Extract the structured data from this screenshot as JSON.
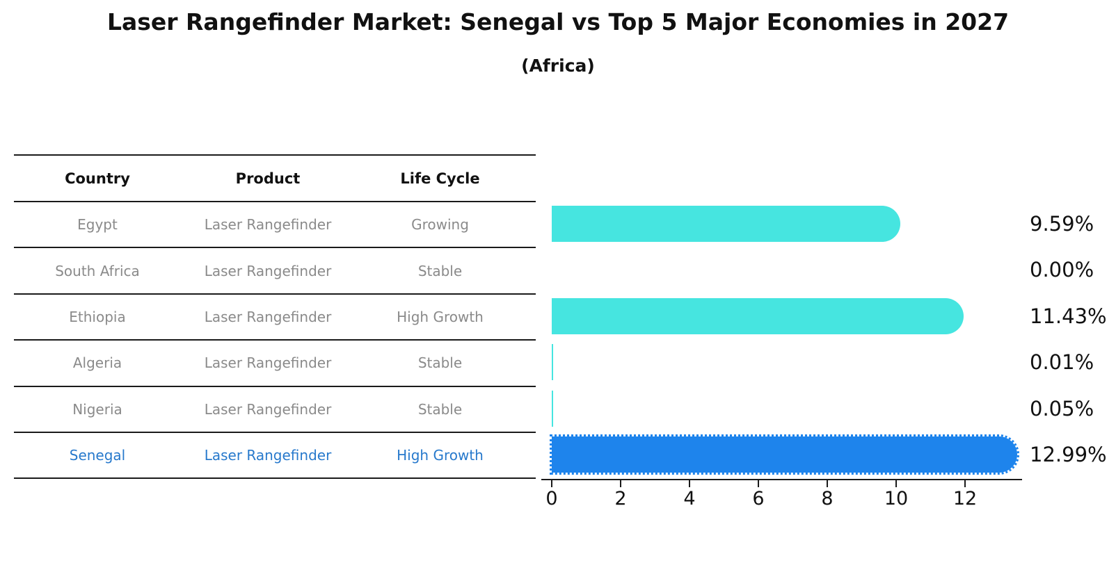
{
  "table": {
    "headers": [
      "Country",
      "Product",
      "Life Cycle"
    ],
    "rows": [
      {
        "country": "Egypt",
        "product": "Laser Rangefinder",
        "life_cycle": "Growing",
        "highlight": false
      },
      {
        "country": "South Africa",
        "product": "Laser Rangefinder",
        "life_cycle": "Stable",
        "highlight": false
      },
      {
        "country": "Ethiopia",
        "product": "Laser Rangefinder",
        "life_cycle": "High Growth",
        "highlight": false
      },
      {
        "country": "Algeria",
        "product": "Laser Rangefinder",
        "life_cycle": "Stable",
        "highlight": false
      },
      {
        "country": "Nigeria",
        "product": "Laser Rangefinder",
        "life_cycle": "Stable",
        "highlight": false
      },
      {
        "country": "Senegal",
        "product": "Laser Rangefinder",
        "life_cycle": "High Growth",
        "highlight": true
      }
    ]
  },
  "chart_data": {
    "type": "bar",
    "orientation": "horizontal",
    "title": "Laser Rangefinder Market: Senegal vs Top 5 Major Economies in 2027",
    "subtitle": "(Africa)",
    "categories": [
      "Egypt",
      "South Africa",
      "Ethiopia",
      "Algeria",
      "Nigeria",
      "Senegal"
    ],
    "values": [
      9.59,
      0.0,
      11.43,
      0.01,
      0.05,
      12.99
    ],
    "value_labels": [
      "9.59%",
      "0.00%",
      "11.43%",
      "0.01%",
      "0.05%",
      "12.99%"
    ],
    "unit": "percent",
    "x_ticks": [
      0,
      2,
      4,
      6,
      8,
      10,
      12
    ],
    "xlim": [
      0,
      13.7
    ],
    "grid": false,
    "legend": "none",
    "highlight_category": "Senegal",
    "xlabel": "",
    "ylabel": ""
  },
  "colors": {
    "bar_default": "#46E5E0",
    "bar_highlight": "#1E84EC",
    "highlight_text": "#2779CC",
    "row_text": "#8A8A8A",
    "heading_text": "#111111",
    "axis": "#1A1A1A"
  }
}
